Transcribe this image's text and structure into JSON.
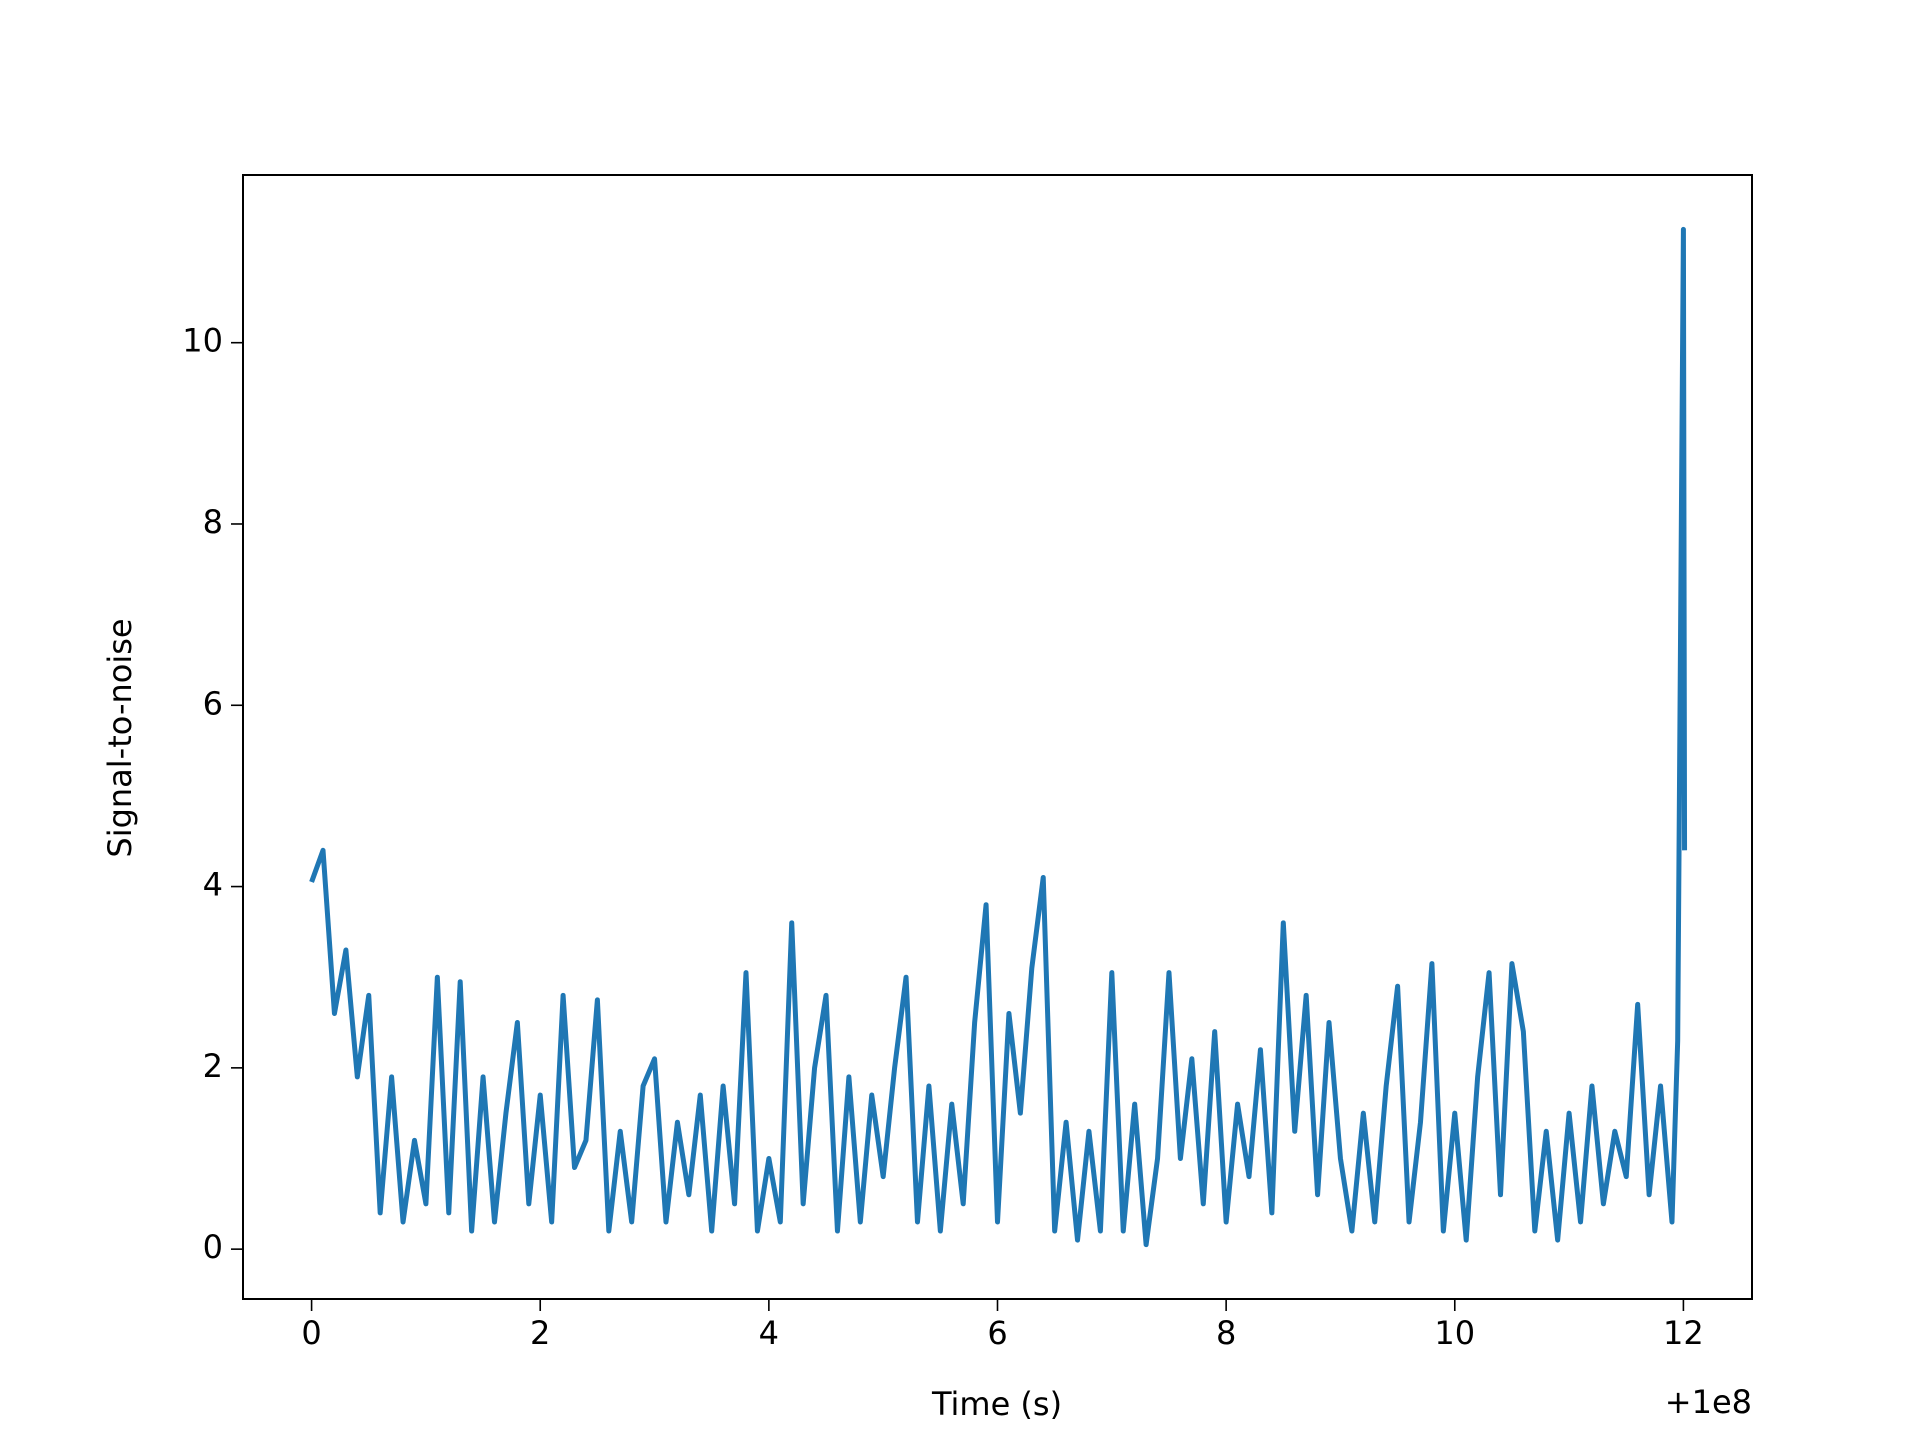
{
  "chart_data": {
    "type": "line",
    "x_label": "Time (s)",
    "y_label": "Signal-to-noise",
    "x_offset_label": "+1e8",
    "xlim": [
      -0.6,
      12.6
    ],
    "ylim": [
      -0.55,
      11.85
    ],
    "xticks": [
      0,
      2,
      4,
      6,
      8,
      10,
      12
    ],
    "yticks": [
      0,
      2,
      4,
      6,
      8,
      10
    ],
    "series": [
      {
        "color": "#1f77b4",
        "x": [
          0.0,
          0.1,
          0.2,
          0.3,
          0.4,
          0.5,
          0.6,
          0.7,
          0.8,
          0.9,
          1.0,
          1.1,
          1.2,
          1.3,
          1.4,
          1.5,
          1.6,
          1.7,
          1.8,
          1.9,
          2.0,
          2.1,
          2.2,
          2.3,
          2.4,
          2.5,
          2.6,
          2.7,
          2.8,
          2.9,
          3.0,
          3.1,
          3.2,
          3.3,
          3.4,
          3.5,
          3.6,
          3.7,
          3.8,
          3.9,
          4.0,
          4.1,
          4.2,
          4.3,
          4.4,
          4.5,
          4.6,
          4.7,
          4.8,
          4.9,
          5.0,
          5.1,
          5.2,
          5.3,
          5.4,
          5.5,
          5.6,
          5.7,
          5.8,
          5.9,
          6.0,
          6.1,
          6.2,
          6.3,
          6.4,
          6.5,
          6.6,
          6.7,
          6.8,
          6.9,
          7.0,
          7.1,
          7.2,
          7.3,
          7.4,
          7.5,
          7.6,
          7.7,
          7.8,
          7.9,
          8.0,
          8.1,
          8.2,
          8.3,
          8.4,
          8.5,
          8.6,
          8.7,
          8.8,
          8.9,
          9.0,
          9.1,
          9.2,
          9.3,
          9.4,
          9.5,
          9.6,
          9.7,
          9.8,
          9.9,
          10.0,
          10.1,
          10.2,
          10.3,
          10.4,
          10.5,
          10.6,
          10.7,
          10.8,
          10.9,
          11.0,
          11.1,
          11.2,
          11.3,
          11.4,
          11.5,
          11.6,
          11.7,
          11.8,
          11.9,
          11.95,
          12.0,
          12.01
        ],
        "values": [
          4.05,
          4.4,
          2.6,
          3.3,
          1.9,
          2.8,
          0.4,
          1.9,
          0.3,
          1.2,
          0.5,
          3.0,
          0.4,
          2.95,
          0.2,
          1.9,
          0.3,
          1.5,
          2.5,
          0.5,
          1.7,
          0.3,
          2.8,
          0.9,
          1.2,
          2.75,
          0.2,
          1.3,
          0.3,
          1.8,
          2.1,
          0.3,
          1.4,
          0.6,
          1.7,
          0.2,
          1.8,
          0.5,
          3.05,
          0.2,
          1.0,
          0.3,
          3.6,
          0.5,
          2.0,
          2.8,
          0.2,
          1.9,
          0.3,
          1.7,
          0.8,
          2.0,
          3.0,
          0.3,
          1.8,
          0.2,
          1.6,
          0.5,
          2.5,
          3.8,
          0.3,
          2.6,
          1.5,
          3.1,
          4.1,
          0.2,
          1.4,
          0.1,
          1.3,
          0.2,
          3.05,
          0.2,
          1.6,
          0.05,
          1.0,
          3.05,
          1.0,
          2.1,
          0.5,
          2.4,
          0.3,
          1.6,
          0.8,
          2.2,
          0.4,
          3.6,
          1.3,
          2.8,
          0.6,
          2.5,
          1.0,
          0.2,
          1.5,
          0.3,
          1.8,
          2.9,
          0.3,
          1.4,
          3.15,
          0.2,
          1.5,
          0.1,
          1.9,
          3.05,
          0.6,
          3.15,
          2.4,
          0.2,
          1.3,
          0.1,
          1.5,
          0.3,
          1.8,
          0.5,
          1.3,
          0.8,
          2.7,
          0.6,
          1.8,
          0.3,
          2.3,
          11.25,
          4.4
        ]
      }
    ]
  }
}
